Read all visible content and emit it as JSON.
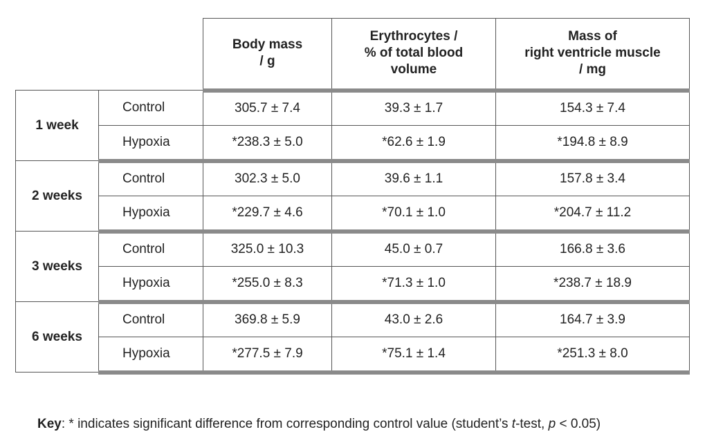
{
  "table": {
    "headers": {
      "body_mass": [
        "Body mass",
        "/ g"
      ],
      "erythrocytes": [
        "Erythrocytes /",
        "% of total blood",
        "volume"
      ],
      "rv_mass": [
        "Mass of",
        "right ventricle muscle",
        "/ mg"
      ]
    },
    "groups": [
      {
        "week": "1 week",
        "rows": [
          {
            "condition": "Control",
            "body_mass": "305.7 ± 7.4",
            "erythrocytes": "39.3 ± 1.7",
            "rv_mass": "154.3 ± 7.4"
          },
          {
            "condition": "Hypoxia",
            "body_mass": "*238.3 ± 5.0",
            "erythrocytes": "*62.6 ± 1.9",
            "rv_mass": "*194.8 ± 8.9"
          }
        ]
      },
      {
        "week": "2 weeks",
        "rows": [
          {
            "condition": "Control",
            "body_mass": "302.3 ± 5.0",
            "erythrocytes": "39.6 ± 1.1",
            "rv_mass": "157.8 ± 3.4"
          },
          {
            "condition": "Hypoxia",
            "body_mass": "*229.7 ± 4.6",
            "erythrocytes": "*70.1 ± 1.0",
            "rv_mass": "*204.7 ± 11.2"
          }
        ]
      },
      {
        "week": "3 weeks",
        "rows": [
          {
            "condition": "Control",
            "body_mass": "325.0 ± 10.3",
            "erythrocytes": "45.0 ± 0.7",
            "rv_mass": "166.8 ± 3.6"
          },
          {
            "condition": "Hypoxia",
            "body_mass": "*255.0 ± 8.3",
            "erythrocytes": "*71.3 ± 1.0",
            "rv_mass": "*238.7 ± 18.9"
          }
        ]
      },
      {
        "week": "6 weeks",
        "rows": [
          {
            "condition": "Control",
            "body_mass": "369.8 ± 5.9",
            "erythrocytes": "43.0 ± 2.6",
            "rv_mass": "164.7 ± 3.9"
          },
          {
            "condition": "Hypoxia",
            "body_mass": "*277.5 ± 7.9",
            "erythrocytes": "*75.1 ± 1.4",
            "rv_mass": "*251.3 ± 8.0"
          }
        ]
      }
    ]
  },
  "key": {
    "label": "Key",
    "text_a": ":  *  indicates significant difference from corresponding control value (student’s ",
    "t": "t",
    "text_b": "-test, ",
    "p": "p",
    "text_c": " < 0.05)"
  }
}
